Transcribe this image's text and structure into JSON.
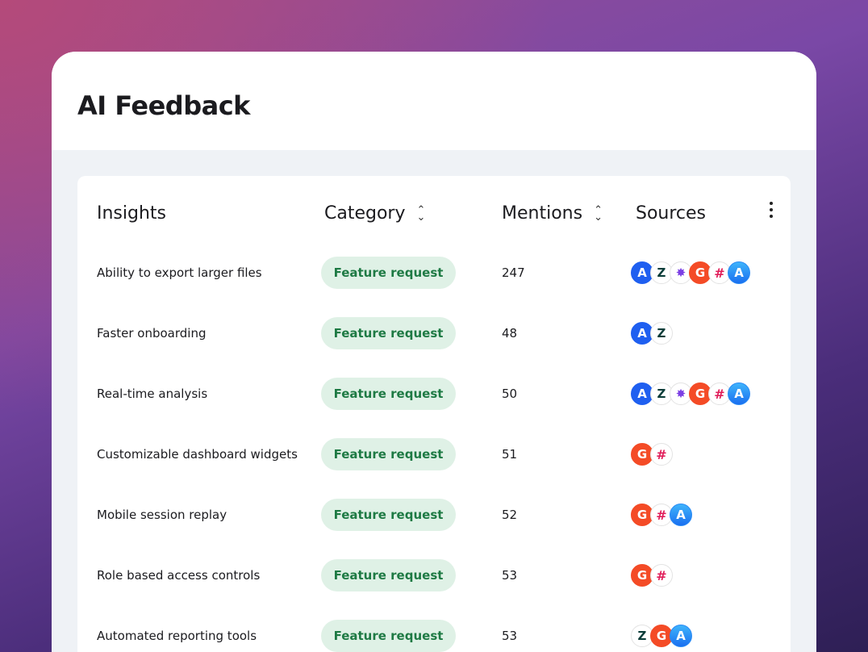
{
  "title": "AI Feedback",
  "columns": {
    "insights": "Insights",
    "category": "Category",
    "mentions": "Mentions",
    "sources": "Sources"
  },
  "rows": [
    {
      "insight": "Ability to export larger files",
      "category": "Feature request",
      "mentions": "247",
      "sources": [
        "amplitude",
        "zendesk",
        "burst",
        "g2",
        "slack",
        "app-store"
      ]
    },
    {
      "insight": "Faster onboarding",
      "category": "Feature request",
      "mentions": "48",
      "sources": [
        "amplitude",
        "zendesk"
      ]
    },
    {
      "insight": "Real-time analysis",
      "category": "Feature request",
      "mentions": "50",
      "sources": [
        "amplitude",
        "zendesk",
        "burst",
        "g2",
        "slack",
        "app-store"
      ]
    },
    {
      "insight": "Customizable dashboard widgets",
      "category": "Feature request",
      "mentions": "51",
      "sources": [
        "g2",
        "slack"
      ]
    },
    {
      "insight": "Mobile session replay",
      "category": "Feature request",
      "mentions": "52",
      "sources": [
        "g2",
        "slack",
        "app-store"
      ]
    },
    {
      "insight": "Role based access controls",
      "category": "Feature request",
      "mentions": "53",
      "sources": [
        "g2",
        "slack"
      ]
    },
    {
      "insight": "Automated reporting tools",
      "category": "Feature request",
      "mentions": "53",
      "sources": [
        "zendesk",
        "g2",
        "app-store"
      ]
    }
  ]
}
